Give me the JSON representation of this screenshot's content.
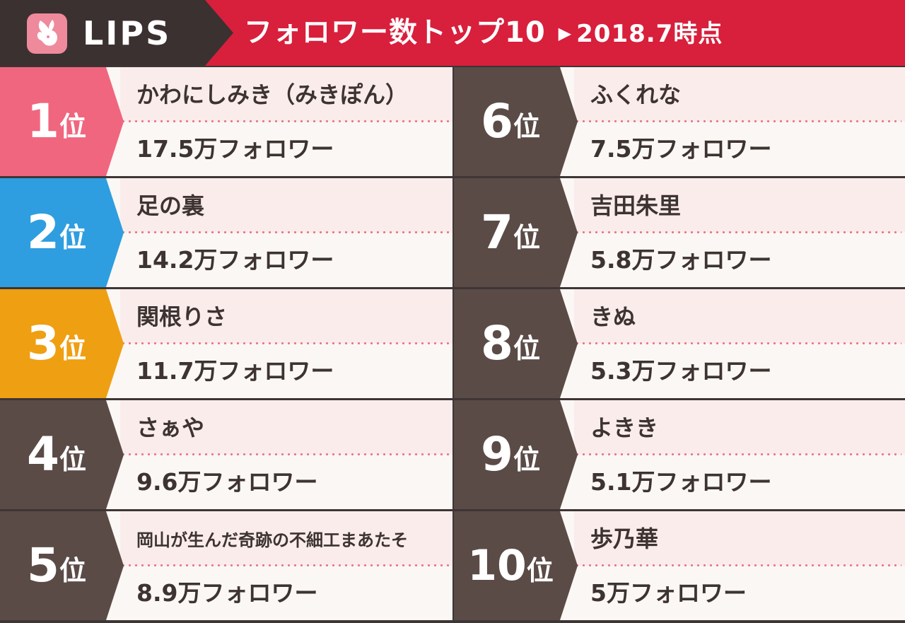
{
  "header": {
    "brand": "LIPS",
    "title": "フォロワー数トップ10",
    "arrow": "▶",
    "date": "2018.7時点"
  },
  "rank_suffix": "位",
  "colors": {
    "header_brand_bg": "#3b3131",
    "header_banner_bg": "#d81f3c",
    "rank_default": "#5b4b47",
    "rank_1": "#f0667e",
    "rank_2": "#2e9ee0",
    "rank_3": "#ef9f12",
    "dots": "#e57488"
  },
  "entries": [
    {
      "rank": "1",
      "name": "かわにしみき（みきぽん）",
      "followers": "17.5万フォロワー"
    },
    {
      "rank": "2",
      "name": "足の裏",
      "followers": "14.2万フォロワー"
    },
    {
      "rank": "3",
      "name": "関根りさ",
      "followers": "11.7万フォロワー"
    },
    {
      "rank": "4",
      "name": "さぁや",
      "followers": "9.6万フォロワー"
    },
    {
      "rank": "5",
      "name": "岡山が生んだ奇跡の不細工まあたそ",
      "followers": "8.9万フォロワー"
    },
    {
      "rank": "6",
      "name": "ふくれな",
      "followers": "7.5万フォロワー"
    },
    {
      "rank": "7",
      "name": "吉田朱里",
      "followers": "5.8万フォロワー"
    },
    {
      "rank": "8",
      "name": "きぬ",
      "followers": "5.3万フォロワー"
    },
    {
      "rank": "9",
      "name": "よきき",
      "followers": "5.1万フォロワー"
    },
    {
      "rank": "10",
      "name": "歩乃華",
      "followers": "5万フォロワー"
    }
  ]
}
